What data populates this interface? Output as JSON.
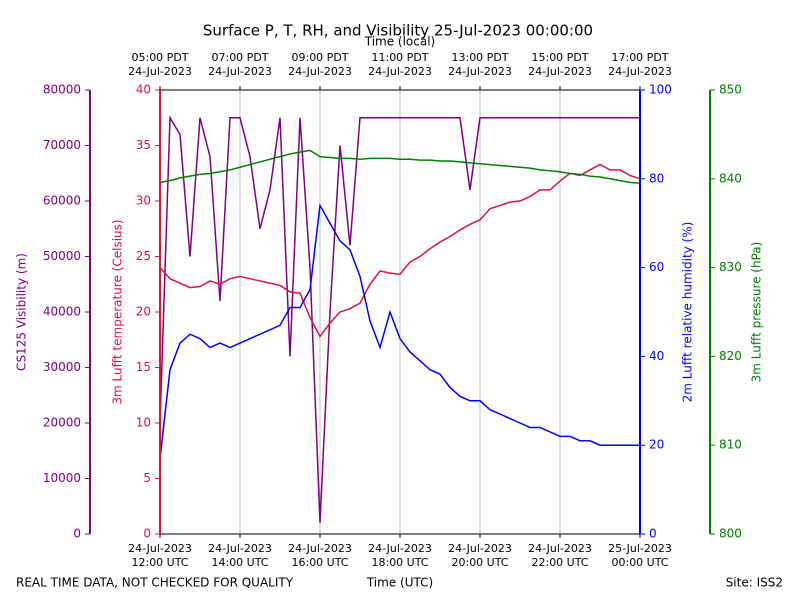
{
  "title": "Surface P, T, RH, and Visibility 25-Jul-2023 00:00:00",
  "footer_left": "REAL TIME DATA, NOT CHECKED FOR QUALITY",
  "footer_right": "Site: ISS2",
  "chart_data": {
    "type": "line",
    "xlabel": "Time (UTC)",
    "x2label": "Time (local)",
    "ylabel": "3m Lufft temperature (Celsius)",
    "y2label": "2m Lufft relative humidity (%)",
    "y3label": "CS125 Visibility (m)",
    "y4label": "3m Lufft pressure (hPa)",
    "xlim": [
      "2023-07-24T12:00",
      "2023-07-25T00:00"
    ],
    "xticks": [
      {
        "value": "2023-07-24T12:00",
        "label": "24-Jul-2023\n12:00 UTC"
      },
      {
        "value": "2023-07-24T14:00",
        "label": "24-Jul-2023\n14:00 UTC"
      },
      {
        "value": "2023-07-24T16:00",
        "label": "24-Jul-2023\n16:00 UTC"
      },
      {
        "value": "2023-07-24T18:00",
        "label": "24-Jul-2023\n18:00 UTC"
      },
      {
        "value": "2023-07-24T20:00",
        "label": "24-Jul-2023\n20:00 UTC"
      },
      {
        "value": "2023-07-24T22:00",
        "label": "24-Jul-2023\n22:00 UTC"
      },
      {
        "value": "2023-07-25T00:00",
        "label": "25-Jul-2023\n00:00 UTC"
      }
    ],
    "x2ticks": [
      {
        "value": "2023-07-24T12:00",
        "label": "05:00 PDT\n24-Jul-2023"
      },
      {
        "value": "2023-07-24T14:00",
        "label": "07:00 PDT\n24-Jul-2023"
      },
      {
        "value": "2023-07-24T16:00",
        "label": "09:00 PDT\n24-Jul-2023"
      },
      {
        "value": "2023-07-24T18:00",
        "label": "11:00 PDT\n24-Jul-2023"
      },
      {
        "value": "2023-07-24T20:00",
        "label": "13:00 PDT\n24-Jul-2023"
      },
      {
        "value": "2023-07-24T22:00",
        "label": "15:00 PDT\n24-Jul-2023"
      },
      {
        "value": "2023-07-25T00:00",
        "label": "17:00 PDT\n24-Jul-2023"
      }
    ],
    "grid": true,
    "ylim": [
      0,
      40
    ],
    "yticks": [
      0,
      5,
      10,
      15,
      20,
      25,
      30,
      35,
      40
    ],
    "y2lim": [
      0,
      100
    ],
    "y2ticks": [
      0,
      20,
      40,
      60,
      80,
      100
    ],
    "y3lim": [
      0,
      80000
    ],
    "y3ticks": [
      0,
      10000,
      20000,
      30000,
      40000,
      50000,
      60000,
      70000,
      80000
    ],
    "y4lim": [
      800,
      850
    ],
    "y4ticks": [
      800,
      810,
      820,
      830,
      840,
      850
    ],
    "x": [
      "2023-07-24T12:00",
      "2023-07-24T12:15",
      "2023-07-24T12:30",
      "2023-07-24T12:45",
      "2023-07-24T13:00",
      "2023-07-24T13:15",
      "2023-07-24T13:30",
      "2023-07-24T13:45",
      "2023-07-24T14:00",
      "2023-07-24T14:15",
      "2023-07-24T14:30",
      "2023-07-24T14:45",
      "2023-07-24T15:00",
      "2023-07-24T15:15",
      "2023-07-24T15:30",
      "2023-07-24T15:45",
      "2023-07-24T16:00",
      "2023-07-24T16:15",
      "2023-07-24T16:30",
      "2023-07-24T16:45",
      "2023-07-24T17:00",
      "2023-07-24T17:15",
      "2023-07-24T17:30",
      "2023-07-24T17:45",
      "2023-07-24T18:00",
      "2023-07-24T18:15",
      "2023-07-24T18:30",
      "2023-07-24T18:45",
      "2023-07-24T19:00",
      "2023-07-24T19:15",
      "2023-07-24T19:30",
      "2023-07-24T19:45",
      "2023-07-24T20:00",
      "2023-07-24T20:15",
      "2023-07-24T20:30",
      "2023-07-24T20:45",
      "2023-07-24T21:00",
      "2023-07-24T21:15",
      "2023-07-24T21:30",
      "2023-07-24T21:45",
      "2023-07-24T22:00",
      "2023-07-24T22:15",
      "2023-07-24T22:30",
      "2023-07-24T22:45",
      "2023-07-24T23:00",
      "2023-07-24T23:15",
      "2023-07-24T23:30",
      "2023-07-24T23:45",
      "2023-07-25T00:00"
    ],
    "series": [
      {
        "axis": "y3",
        "color": "#800080",
        "values": [
          20000,
          75000,
          72000,
          50000,
          75000,
          68000,
          42000,
          75000,
          75000,
          68000,
          55000,
          62000,
          75000,
          32000,
          75000,
          48000,
          2000,
          40000,
          70000,
          52000,
          75000,
          75000,
          75000,
          75000,
          75000,
          75000,
          75000,
          75000,
          75000,
          75000,
          75000,
          62000,
          75000,
          75000,
          75000,
          75000,
          75000,
          75000,
          75000,
          75000,
          75000,
          75000,
          75000,
          75000,
          75000,
          75000,
          75000,
          75000,
          75000
        ]
      },
      {
        "axis": "y",
        "color": "#dc143c",
        "values": [
          24.0,
          23.0,
          22.6,
          22.2,
          22.3,
          22.8,
          22.5,
          23.0,
          23.2,
          23.0,
          22.8,
          22.6,
          22.4,
          21.8,
          21.7,
          19.5,
          17.8,
          19.0,
          20.0,
          20.3,
          20.8,
          22.5,
          23.7,
          23.5,
          23.4,
          24.5,
          25.0,
          25.7,
          26.3,
          26.8,
          27.4,
          27.9,
          28.3,
          29.3,
          29.6,
          29.9,
          30.0,
          30.4,
          31.0,
          31.0,
          31.8,
          32.5,
          32.3,
          32.8,
          33.3,
          32.8,
          32.8,
          32.3,
          32.0
        ]
      },
      {
        "axis": "y2",
        "color": "#0000ff",
        "values": [
          17,
          37,
          43,
          45,
          44,
          42,
          43,
          42,
          43,
          44,
          45,
          46,
          47,
          51,
          51,
          55,
          74,
          70,
          66,
          64,
          58,
          48,
          42,
          50,
          44,
          41,
          39,
          37,
          36,
          33,
          31,
          30,
          30,
          28,
          27,
          26,
          25,
          24,
          24,
          23,
          22,
          22,
          21,
          21,
          20,
          20,
          20,
          20,
          20
        ]
      },
      {
        "axis": "y4",
        "color": "#008000",
        "values": [
          839.6,
          839.8,
          840.1,
          840.3,
          840.5,
          840.6,
          840.8,
          841.0,
          841.3,
          841.6,
          841.9,
          842.2,
          842.5,
          842.8,
          843.0,
          843.2,
          842.5,
          842.4,
          842.3,
          842.3,
          842.2,
          842.3,
          842.3,
          842.3,
          842.2,
          842.2,
          842.1,
          842.1,
          842.0,
          842.0,
          841.9,
          841.8,
          841.7,
          841.6,
          841.5,
          841.4,
          841.3,
          841.2,
          841.0,
          840.9,
          840.8,
          840.6,
          840.5,
          840.3,
          840.2,
          840.0,
          839.8,
          839.6,
          839.5
        ]
      }
    ]
  }
}
